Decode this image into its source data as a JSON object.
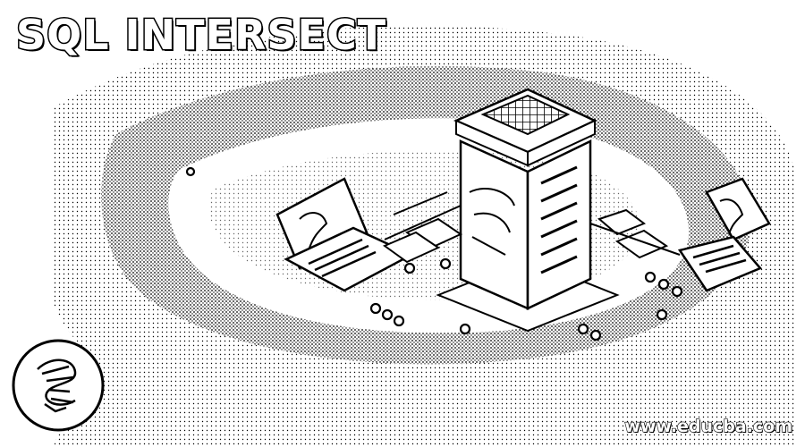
{
  "title": "SQL INTERSECT",
  "watermark": "www.educba.com",
  "icons": {
    "server": "server-tower-icon",
    "laptop_left": "laptop-icon",
    "laptop_right": "laptop-icon",
    "logo": "sql-server-logo-icon"
  },
  "colors": {
    "ink": "#000000",
    "paper": "#ffffff"
  }
}
